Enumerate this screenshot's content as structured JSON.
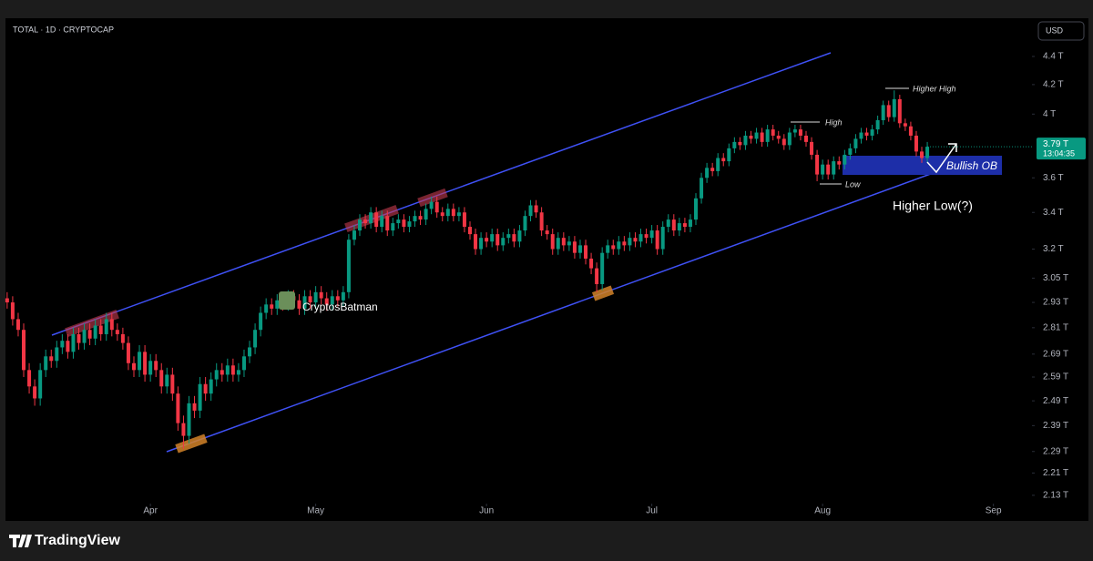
{
  "chart_data": {
    "type": "candlestick",
    "title": "TOTAL · 1D · CRYPTOCAP",
    "currency": "USD",
    "brand": "TradingView",
    "watermark": "CryptosBatman",
    "annotations": {
      "high": "High",
      "higher_high": "Higher High",
      "low": "Low",
      "bullish_ob": "Bullish OB",
      "higher_low": "Higher Low(?)"
    },
    "last_price": {
      "value": 3.79,
      "label": "3.79 T"
    },
    "countdown": "13:04:35",
    "log_scale": true,
    "up_color": "#089981",
    "down_color": "#f23645",
    "xlim": [
      -1.3,
      186
    ],
    "xticks": [
      {
        "value": 26,
        "label": "Apr"
      },
      {
        "value": 56,
        "label": "May"
      },
      {
        "value": 87,
        "label": "Jun"
      },
      {
        "value": 117,
        "label": "Jul"
      },
      {
        "value": 148,
        "label": "Aug"
      },
      {
        "value": 179,
        "label": "Sep"
      }
    ],
    "ylim": [
      2.054,
      4.673
    ],
    "yticks": [
      {
        "value": 4.4,
        "label": "4.4 T"
      },
      {
        "value": 4.2,
        "label": "4.2 T"
      },
      {
        "value": 4,
        "label": "4 T"
      },
      {
        "value": 3.6,
        "label": "3.6 T"
      },
      {
        "value": 3.4,
        "label": "3.4 T"
      },
      {
        "value": 3.2,
        "label": "3.2 T"
      },
      {
        "value": 3.05,
        "label": "3.05 T"
      },
      {
        "value": 2.93,
        "label": "2.93 T"
      },
      {
        "value": 2.81,
        "label": "2.81 T"
      },
      {
        "value": 2.69,
        "label": "2.69 T"
      },
      {
        "value": 2.59,
        "label": "2.59 T"
      },
      {
        "value": 2.49,
        "label": "2.49 T"
      },
      {
        "value": 2.39,
        "label": "2.39 T"
      },
      {
        "value": 2.29,
        "label": "2.29 T"
      },
      {
        "value": 2.21,
        "label": "2.21 T"
      },
      {
        "value": 2.13,
        "label": "2.13 T"
      }
    ],
    "ohlc": {
      "open": [
        2.95,
        2.93,
        2.85,
        2.8,
        2.62,
        2.55,
        2.5,
        2.62,
        2.68,
        2.66,
        2.72,
        2.75,
        2.7,
        2.78,
        2.74,
        2.8,
        2.76,
        2.82,
        2.78,
        2.85,
        2.8,
        2.78,
        2.74,
        2.65,
        2.62,
        2.7,
        2.6,
        2.66,
        2.62,
        2.55,
        2.6,
        2.52,
        2.4,
        2.35,
        2.48,
        2.45,
        2.56,
        2.52,
        2.58,
        2.62,
        2.6,
        2.64,
        2.6,
        2.62,
        2.68,
        2.72,
        2.8,
        2.88,
        2.92,
        2.9,
        2.94,
        2.92,
        2.96,
        2.94,
        2.9,
        2.96,
        2.93,
        2.98,
        2.95,
        2.92,
        2.96,
        2.94,
        2.98,
        3.25,
        3.3,
        3.36,
        3.34,
        3.4,
        3.32,
        3.38,
        3.3,
        3.34,
        3.36,
        3.32,
        3.35,
        3.38,
        3.36,
        3.42,
        3.46,
        3.4,
        3.38,
        3.42,
        3.38,
        3.4,
        3.32,
        3.28,
        3.2,
        3.26,
        3.24,
        3.28,
        3.22,
        3.26,
        3.28,
        3.24,
        3.3,
        3.38,
        3.44,
        3.4,
        3.3,
        3.28,
        3.2,
        3.26,
        3.22,
        3.24,
        3.18,
        3.22,
        3.15,
        3.1,
        3.02,
        3.18,
        3.22,
        3.2,
        3.24,
        3.22,
        3.26,
        3.24,
        3.28,
        3.26,
        3.3,
        3.2,
        3.32,
        3.36,
        3.3,
        3.34,
        3.32,
        3.36,
        3.48,
        3.6,
        3.66,
        3.64,
        3.72,
        3.7,
        3.78,
        3.82,
        3.8,
        3.86,
        3.84,
        3.88,
        3.82,
        3.9,
        3.86,
        3.84,
        3.8,
        3.88,
        3.9,
        3.86,
        3.82,
        3.74,
        3.62,
        3.68,
        3.62,
        3.7,
        3.68,
        3.74,
        3.78,
        3.84,
        3.88,
        3.86,
        3.9,
        3.96,
        4.06,
        3.98,
        4.1,
        3.94,
        3.92,
        3.86,
        3.76,
        3.72
      ],
      "high": [
        2.98,
        2.96,
        2.88,
        2.83,
        2.65,
        2.58,
        2.65,
        2.71,
        2.71,
        2.75,
        2.78,
        2.78,
        2.81,
        2.81,
        2.83,
        2.83,
        2.85,
        2.85,
        2.88,
        2.88,
        2.83,
        2.81,
        2.77,
        2.68,
        2.73,
        2.73,
        2.69,
        2.69,
        2.65,
        2.63,
        2.63,
        2.55,
        2.43,
        2.51,
        2.51,
        2.59,
        2.59,
        2.61,
        2.65,
        2.65,
        2.67,
        2.67,
        2.65,
        2.71,
        2.75,
        2.83,
        2.91,
        2.95,
        2.95,
        2.97,
        2.97,
        2.99,
        2.99,
        2.97,
        2.99,
        2.99,
        3.01,
        3.01,
        2.98,
        2.99,
        2.99,
        3.01,
        3.28,
        3.33,
        3.39,
        3.39,
        3.43,
        3.43,
        3.41,
        3.41,
        3.37,
        3.39,
        3.39,
        3.38,
        3.41,
        3.41,
        3.45,
        3.49,
        3.49,
        3.43,
        3.45,
        3.45,
        3.43,
        3.43,
        3.35,
        3.31,
        3.29,
        3.29,
        3.31,
        3.31,
        3.29,
        3.31,
        3.31,
        3.33,
        3.41,
        3.47,
        3.47,
        3.43,
        3.33,
        3.31,
        3.29,
        3.29,
        3.27,
        3.27,
        3.25,
        3.25,
        3.18,
        3.13,
        3.21,
        3.25,
        3.25,
        3.27,
        3.27,
        3.29,
        3.29,
        3.31,
        3.31,
        3.33,
        3.33,
        3.35,
        3.39,
        3.39,
        3.37,
        3.37,
        3.39,
        3.51,
        3.63,
        3.69,
        3.69,
        3.75,
        3.75,
        3.81,
        3.85,
        3.85,
        3.89,
        3.89,
        3.91,
        3.91,
        3.93,
        3.93,
        3.89,
        3.87,
        3.91,
        3.93,
        3.93,
        3.89,
        3.85,
        3.77,
        3.71,
        3.71,
        3.73,
        3.73,
        3.77,
        3.81,
        3.87,
        3.91,
        3.91,
        3.93,
        3.99,
        4.09,
        4.09,
        4.16,
        4.13,
        3.97,
        3.95,
        3.89,
        3.79,
        3.82
      ],
      "low": [
        2.9,
        2.82,
        2.77,
        2.59,
        2.52,
        2.47,
        2.47,
        2.59,
        2.63,
        2.63,
        2.69,
        2.67,
        2.67,
        2.71,
        2.71,
        2.73,
        2.73,
        2.75,
        2.75,
        2.77,
        2.75,
        2.71,
        2.62,
        2.59,
        2.59,
        2.57,
        2.57,
        2.59,
        2.52,
        2.52,
        2.49,
        2.37,
        2.3,
        2.32,
        2.42,
        2.42,
        2.49,
        2.49,
        2.55,
        2.57,
        2.57,
        2.57,
        2.57,
        2.59,
        2.65,
        2.69,
        2.77,
        2.85,
        2.87,
        2.87,
        2.89,
        2.89,
        2.91,
        2.87,
        2.87,
        2.9,
        2.9,
        2.92,
        2.89,
        2.89,
        2.91,
        2.91,
        2.95,
        3.22,
        3.27,
        3.31,
        3.31,
        3.29,
        3.29,
        3.27,
        3.27,
        3.31,
        3.29,
        3.29,
        3.32,
        3.33,
        3.33,
        3.39,
        3.37,
        3.35,
        3.35,
        3.35,
        3.35,
        3.29,
        3.25,
        3.17,
        3.17,
        3.21,
        3.21,
        3.19,
        3.19,
        3.23,
        3.21,
        3.21,
        3.27,
        3.35,
        3.37,
        3.27,
        3.25,
        3.17,
        3.17,
        3.19,
        3.19,
        3.15,
        3.15,
        3.12,
        3.07,
        2.98,
        2.99,
        3.15,
        3.17,
        3.17,
        3.19,
        3.19,
        3.21,
        3.21,
        3.23,
        3.23,
        3.17,
        3.17,
        3.29,
        3.27,
        3.27,
        3.29,
        3.29,
        3.33,
        3.45,
        3.57,
        3.61,
        3.61,
        3.67,
        3.67,
        3.75,
        3.77,
        3.77,
        3.81,
        3.81,
        3.79,
        3.79,
        3.83,
        3.81,
        3.77,
        3.77,
        3.85,
        3.83,
        3.79,
        3.71,
        3.58,
        3.59,
        3.59,
        3.59,
        3.65,
        3.65,
        3.71,
        3.75,
        3.81,
        3.83,
        3.83,
        3.87,
        3.93,
        3.95,
        3.95,
        3.91,
        3.89,
        3.83,
        3.73,
        3.69,
        3.69
      ],
      "close": [
        2.93,
        2.85,
        2.8,
        2.62,
        2.55,
        2.5,
        2.62,
        2.68,
        2.66,
        2.72,
        2.75,
        2.7,
        2.78,
        2.74,
        2.8,
        2.76,
        2.82,
        2.78,
        2.85,
        2.8,
        2.78,
        2.74,
        2.65,
        2.62,
        2.7,
        2.6,
        2.66,
        2.62,
        2.55,
        2.6,
        2.52,
        2.4,
        2.35,
        2.48,
        2.45,
        2.56,
        2.52,
        2.58,
        2.62,
        2.6,
        2.64,
        2.6,
        2.62,
        2.68,
        2.72,
        2.8,
        2.88,
        2.92,
        2.9,
        2.94,
        2.92,
        2.96,
        2.94,
        2.9,
        2.96,
        2.93,
        2.98,
        2.95,
        2.92,
        2.96,
        2.94,
        2.98,
        3.25,
        3.3,
        3.36,
        3.34,
        3.4,
        3.32,
        3.38,
        3.3,
        3.34,
        3.36,
        3.32,
        3.35,
        3.38,
        3.36,
        3.42,
        3.46,
        3.4,
        3.38,
        3.42,
        3.38,
        3.4,
        3.32,
        3.28,
        3.2,
        3.26,
        3.24,
        3.28,
        3.22,
        3.26,
        3.28,
        3.24,
        3.3,
        3.38,
        3.44,
        3.4,
        3.3,
        3.28,
        3.2,
        3.26,
        3.22,
        3.24,
        3.18,
        3.22,
        3.15,
        3.1,
        3.02,
        3.18,
        3.22,
        3.2,
        3.24,
        3.22,
        3.26,
        3.24,
        3.28,
        3.26,
        3.3,
        3.2,
        3.32,
        3.36,
        3.3,
        3.34,
        3.32,
        3.36,
        3.48,
        3.6,
        3.66,
        3.64,
        3.72,
        3.7,
        3.78,
        3.82,
        3.8,
        3.86,
        3.84,
        3.88,
        3.82,
        3.9,
        3.86,
        3.84,
        3.8,
        3.88,
        3.9,
        3.86,
        3.82,
        3.74,
        3.62,
        3.68,
        3.62,
        3.7,
        3.68,
        3.74,
        3.78,
        3.84,
        3.88,
        3.86,
        3.9,
        3.96,
        4.06,
        3.98,
        4.1,
        3.94,
        3.92,
        3.86,
        3.76,
        3.72,
        3.79
      ]
    }
  }
}
